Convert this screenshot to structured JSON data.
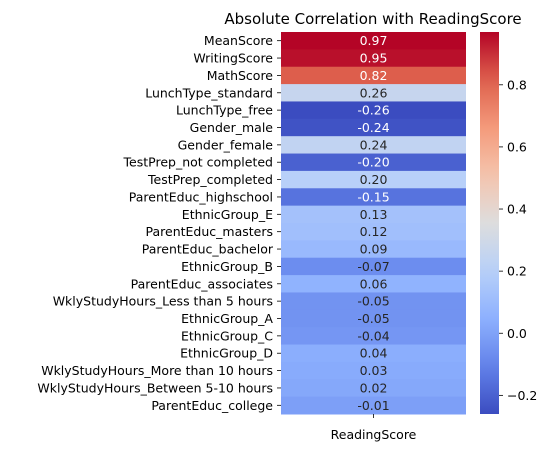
{
  "chart_data": {
    "type": "heatmap",
    "title": "Absolute Correlation with ReadingScore",
    "xlabel": "",
    "ylabel": "",
    "columns": [
      "ReadingScore"
    ],
    "rows": [
      {
        "label": "MeanScore",
        "value": 0.97,
        "text": "0.97"
      },
      {
        "label": "WritingScore",
        "value": 0.95,
        "text": "0.95"
      },
      {
        "label": "MathScore",
        "value": 0.82,
        "text": "0.82"
      },
      {
        "label": "LunchType_standard",
        "value": 0.26,
        "text": "0.26"
      },
      {
        "label": "LunchType_free",
        "value": -0.26,
        "text": "-0.26"
      },
      {
        "label": "Gender_male",
        "value": -0.24,
        "text": "-0.24"
      },
      {
        "label": "Gender_female",
        "value": 0.24,
        "text": "0.24"
      },
      {
        "label": "TestPrep_not completed",
        "value": -0.2,
        "text": "-0.20"
      },
      {
        "label": "TestPrep_completed",
        "value": 0.2,
        "text": "0.20"
      },
      {
        "label": "ParentEduc_highschool",
        "value": -0.15,
        "text": "-0.15"
      },
      {
        "label": "EthnicGroup_E",
        "value": 0.13,
        "text": "0.13"
      },
      {
        "label": "ParentEduc_masters",
        "value": 0.12,
        "text": "0.12"
      },
      {
        "label": "ParentEduc_bachelor",
        "value": 0.09,
        "text": "0.09"
      },
      {
        "label": "EthnicGroup_B",
        "value": -0.07,
        "text": "-0.07"
      },
      {
        "label": "ParentEduc_associates",
        "value": 0.06,
        "text": "0.06"
      },
      {
        "label": "WklyStudyHours_Less than 5 hours",
        "value": -0.05,
        "text": "-0.05"
      },
      {
        "label": "EthnicGroup_A",
        "value": -0.05,
        "text": "-0.05"
      },
      {
        "label": "EthnicGroup_C",
        "value": -0.04,
        "text": "-0.04"
      },
      {
        "label": "EthnicGroup_D",
        "value": 0.04,
        "text": "0.04"
      },
      {
        "label": "WklyStudyHours_More than 10 hours",
        "value": 0.03,
        "text": "0.03"
      },
      {
        "label": "WklyStudyHours_Between 5-10 hours",
        "value": 0.02,
        "text": "0.02"
      },
      {
        "label": "ParentEduc_college",
        "value": -0.01,
        "text": "-0.01"
      }
    ],
    "colormap": "coolwarm",
    "colorbar": {
      "vmin": -0.26,
      "vmax": 0.97,
      "ticks": [
        -0.2,
        0.0,
        0.2,
        0.4,
        0.6,
        0.8
      ],
      "tick_labels": [
        "−0.2",
        "0.0",
        "0.2",
        "0.4",
        "0.6",
        "0.8"
      ]
    },
    "grid": false,
    "legend": "colorbar-right"
  }
}
